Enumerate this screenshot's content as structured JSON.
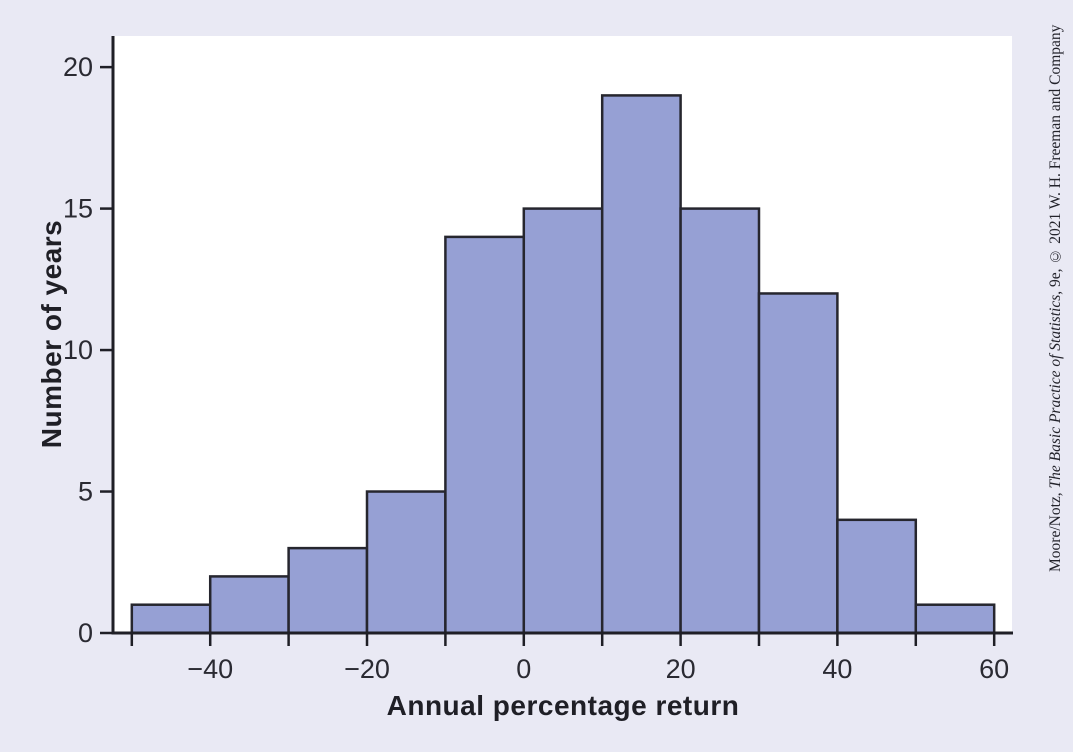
{
  "figure": {
    "credit": {
      "prefix": "Moore/Notz, ",
      "italic_title": "The Basic Practice of Statistics",
      "suffix": ", 9e, © 2021 W. H. Freeman and Company"
    }
  },
  "chart_data": {
    "type": "bar",
    "subtype": "histogram",
    "title": "",
    "xlabel": "Annual percentage return",
    "ylabel": "Number of years",
    "bin_edges": [
      -50,
      -40,
      -30,
      -20,
      -10,
      0,
      10,
      20,
      30,
      40,
      50,
      60
    ],
    "counts": [
      1,
      2,
      3,
      5,
      14,
      15,
      19,
      15,
      12,
      4,
      1
    ],
    "x_tick_labels": [
      {
        "value": -40,
        "label": "−40"
      },
      {
        "value": -20,
        "label": "−20"
      },
      {
        "value": 0,
        "label": "0"
      },
      {
        "value": 20,
        "label": "20"
      },
      {
        "value": 40,
        "label": "40"
      },
      {
        "value": 60,
        "label": "60"
      }
    ],
    "y_tick_labels": [
      {
        "value": 0,
        "label": "0"
      },
      {
        "value": 5,
        "label": "5"
      },
      {
        "value": 10,
        "label": "10"
      },
      {
        "value": 15,
        "label": "15"
      },
      {
        "value": 20,
        "label": "20"
      }
    ],
    "xlim": [
      -52.4,
      62.4
    ],
    "ylim": [
      0,
      21.1
    ],
    "grid": false,
    "legend": false,
    "colors": {
      "page_bg": "#e9e9f4",
      "plot_bg": "#ffffff",
      "bar_fill": "#96a0d4",
      "bar_stroke": "#26262e",
      "axis": "#1f1f26",
      "tick_text": "#2a2a32"
    }
  }
}
